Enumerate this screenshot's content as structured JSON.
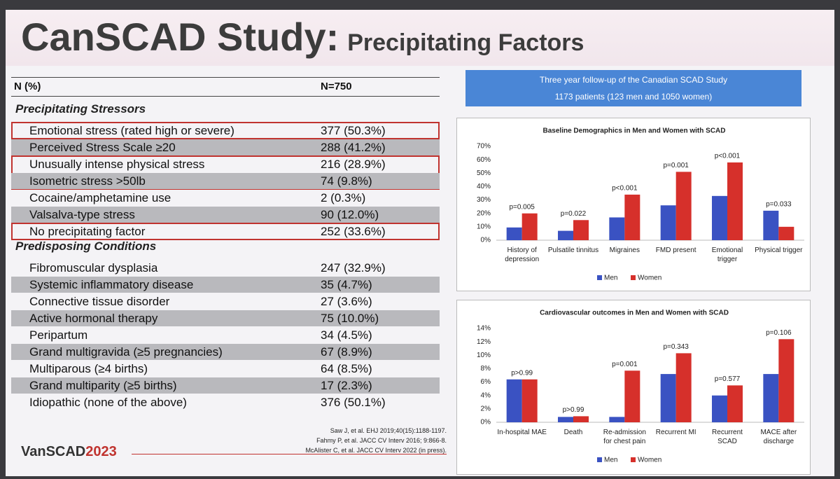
{
  "header": {
    "title": "CanSCAD Study:",
    "subtitle": "Precipitating Factors"
  },
  "table": {
    "columns": [
      "N (%)",
      "N=750"
    ],
    "sections": [
      {
        "title": "Precipitating Stressors",
        "rows": [
          [
            "Emotional stress (rated high or severe)",
            "377 (50.3%)"
          ],
          [
            "Perceived Stress Scale ≥20",
            "288 (41.2%)"
          ],
          [
            "Unusually intense physical stress",
            "216 (28.9%)"
          ],
          [
            "Isometric stress >50lb",
            "74 (9.8%)"
          ],
          [
            "Cocaine/amphetamine use",
            "2 (0.3%)"
          ],
          [
            "Valsalva-type stress",
            "90 (12.0%)"
          ],
          [
            "No precipitating factor",
            "252 (33.6%)"
          ]
        ]
      },
      {
        "title": "Predisposing Conditions",
        "rows": [
          [
            "Fibromuscular dysplasia",
            "247 (32.9%)"
          ],
          [
            "Systemic inflammatory disease",
            "35 (4.7%)"
          ],
          [
            "Connective tissue disorder",
            "27 (3.6%)"
          ],
          [
            "Active hormonal therapy",
            "75 (10.0%)"
          ],
          [
            "Peripartum",
            "34 (4.5%)"
          ],
          [
            "Grand multigravida (≥5 pregnancies)",
            "67 (8.9%)"
          ],
          [
            "Multiparous (≥4 births)",
            "64 (8.5%)"
          ],
          [
            "Grand multiparity (≥5 births)",
            "17 (2.3%)"
          ],
          [
            "Idiopathic (none of the above)",
            "376 (50.1%)"
          ]
        ]
      }
    ]
  },
  "info": {
    "line1": "Three year follow-up of the Canadian SCAD Study",
    "line2": "1173 patients (123 men and 1050 women)"
  },
  "chart_data": [
    {
      "type": "bar",
      "title": "Baseline Demographics in Men and Women with SCAD",
      "categories": [
        "History of depression",
        "Pulsatile tinnitus",
        "Migraines",
        "FMD present",
        "Emotional trigger",
        "Physical trigger"
      ],
      "series": [
        {
          "name": "Men",
          "color": "#3a52c2",
          "values": [
            9.5,
            7,
            17,
            26,
            33,
            22
          ]
        },
        {
          "name": "Women",
          "color": "#d6302b",
          "values": [
            20,
            15,
            34,
            51,
            58,
            10
          ]
        }
      ],
      "annotations": [
        "p=0.005",
        "p=0.022",
        "p<0.001",
        "p=0.001",
        "p<0.001",
        "p=0.033"
      ],
      "ylim": [
        0,
        70
      ],
      "yticks": [
        {
          "value": 0,
          "label": "0%"
        },
        {
          "value": 10,
          "label": "10%"
        },
        {
          "value": 20,
          "label": "20%"
        },
        {
          "value": 30,
          "label": "30%"
        },
        {
          "value": 40,
          "label": "40%"
        },
        {
          "value": 50,
          "label": "50%"
        },
        {
          "value": 60,
          "label": "60%"
        },
        {
          "value": 70,
          "label": "70%"
        }
      ]
    },
    {
      "type": "bar",
      "title": "Cardiovascular outcomes in Men and Women with SCAD",
      "categories": [
        "In-hospital MAE",
        "Death",
        "Re-admission for chest pain",
        "Recurrent MI",
        "Recurrent SCAD",
        "MACE after discharge"
      ],
      "series": [
        {
          "name": "Men",
          "color": "#3a52c2",
          "values": [
            6.4,
            0.8,
            0.8,
            7.2,
            4.0,
            7.2
          ]
        },
        {
          "name": "Women",
          "color": "#d6302b",
          "values": [
            6.4,
            0.9,
            7.7,
            10.3,
            5.5,
            12.4
          ]
        }
      ],
      "annotations": [
        "p>0.99",
        "p>0.99",
        "p=0.001",
        "p=0.343",
        "p=0.577",
        "p=0.106"
      ],
      "ylim": [
        0,
        14
      ],
      "yticks": [
        {
          "value": 0,
          "label": "0%"
        },
        {
          "value": 2,
          "label": "2%"
        },
        {
          "value": 4,
          "label": "4%"
        },
        {
          "value": 6,
          "label": "6%"
        },
        {
          "value": 8,
          "label": "8%"
        },
        {
          "value": 10,
          "label": "10%"
        },
        {
          "value": 12,
          "label": "12%"
        },
        {
          "value": 14,
          "label": "14%"
        }
      ]
    }
  ],
  "references": [
    "Saw J, et al. EHJ 2019;40(15):1188-1197.",
    "Fahmy P, et al. JACC CV Interv 2016; 9:866-8.",
    "McAlister C, et al. JACC CV Interv 2022 (in press)."
  ],
  "footer": {
    "name": "VanSCAD",
    "year": "2023"
  }
}
